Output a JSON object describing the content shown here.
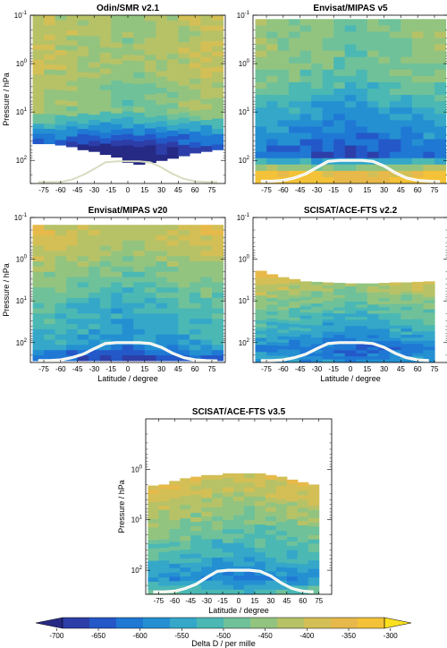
{
  "chart_data": [
    {
      "type": "heatmap",
      "title": "Odin/SMR v2.1",
      "ylabel": "Pressure / hPa",
      "xlabel": "",
      "xlim": [
        -87,
        87
      ],
      "ylim": [
        300,
        0.1
      ],
      "yscale": "log",
      "x_ticks": [
        "-75",
        "-60",
        "-45",
        "-30",
        "-15",
        "0",
        "15",
        "30",
        "45",
        "60",
        "75"
      ],
      "y_ticks": [
        "10^-1",
        "10^0",
        "10^1",
        "10^2"
      ],
      "lat_bins": [
        -80,
        -70,
        -60,
        -50,
        -40,
        -30,
        -20,
        -10,
        0,
        10,
        20,
        30,
        40,
        50,
        60,
        70,
        80
      ],
      "data_bottom_hPa": [
        45,
        45,
        48,
        52,
        60,
        65,
        75,
        85,
        110,
        120,
        110,
        100,
        90,
        80,
        70,
        65,
        60
      ],
      "data_top_hPa": 0.1,
      "profile_levels_hPa": [
        0.15,
        1,
        10,
        60
      ],
      "profile_values": [
        -430,
        -430,
        -470,
        -700
      ],
      "tropopause_hPa": [
        280,
        280,
        280,
        250,
        200,
        150,
        110,
        105,
        105,
        105,
        110,
        140,
        190,
        240,
        270,
        280,
        280
      ]
    },
    {
      "type": "heatmap",
      "title": "Envisat/MIPAS v5",
      "ylabel": "",
      "xlabel": "",
      "xlim": [
        -87,
        87
      ],
      "ylim": [
        300,
        0.1
      ],
      "yscale": "log",
      "x_ticks": [
        "-75",
        "-60",
        "-45",
        "-30",
        "-15",
        "0",
        "15",
        "30",
        "45",
        "60",
        "75"
      ],
      "y_ticks": [
        "10^-1",
        "10^0",
        "10^1",
        "10^2"
      ],
      "lat_bins": [
        -80,
        -70,
        -60,
        -50,
        -40,
        -30,
        -20,
        -10,
        0,
        10,
        20,
        30,
        40,
        50,
        60,
        70,
        80
      ],
      "data_bottom_hPa": 300,
      "data_top_hPa": 0.12,
      "profile_levels_hPa": [
        0.15,
        1,
        10,
        80,
        200
      ],
      "profile_values": [
        -470,
        -470,
        -560,
        -640,
        -340
      ],
      "tropopause_hPa": [
        270,
        270,
        260,
        230,
        190,
        140,
        105,
        100,
        100,
        100,
        105,
        130,
        180,
        230,
        260,
        270,
        275
      ]
    },
    {
      "type": "heatmap",
      "title": "Envisat/MIPAS v20",
      "ylabel": "Pressure / hPa",
      "xlabel": "Latitude / degree",
      "xlim": [
        -87,
        87
      ],
      "ylim": [
        300,
        0.1
      ],
      "yscale": "log",
      "x_ticks": [
        "-75",
        "-60",
        "-45",
        "-30",
        "-15",
        "0",
        "15",
        "30",
        "45",
        "60",
        "75"
      ],
      "y_ticks": [
        "10^-1",
        "10^0",
        "10^1",
        "10^2"
      ],
      "lat_bins": [
        -80,
        -70,
        -60,
        -50,
        -40,
        -30,
        -20,
        -10,
        0,
        10,
        20,
        30,
        40,
        50,
        60,
        70,
        80
      ],
      "data_bottom_hPa": 270,
      "data_top_hPa": 0.15,
      "profile_levels_hPa": [
        0.2,
        1,
        10,
        100,
        230
      ],
      "profile_values": [
        -400,
        -440,
        -520,
        -560,
        -650
      ],
      "tropopause_hPa": [
        270,
        270,
        260,
        230,
        190,
        140,
        105,
        100,
        100,
        100,
        105,
        130,
        180,
        230,
        260,
        270,
        275
      ]
    },
    {
      "type": "heatmap",
      "title": "SCISAT/ACE-FTS v2.2",
      "ylabel": "",
      "xlabel": "Latitude / degree",
      "xlim": [
        -87,
        87
      ],
      "ylim": [
        300,
        0.1
      ],
      "yscale": "log",
      "x_ticks": [
        "-75",
        "-60",
        "-45",
        "-30",
        "-15",
        "0",
        "15",
        "30",
        "45",
        "60",
        "75"
      ],
      "y_ticks": [
        "10^-1",
        "10^0",
        "10^1",
        "10^2"
      ],
      "lat_bins": [
        -80,
        -70,
        -60,
        -50,
        -40,
        -30,
        -20,
        -10,
        0,
        10,
        20,
        30,
        40,
        50,
        60,
        70
      ],
      "data_bottom_hPa": 300,
      "data_top_hPa": [
        1.9,
        2.3,
        2.7,
        3,
        3.4,
        3.5,
        3.6,
        3.7,
        3.8,
        3.8,
        3.8,
        3.7,
        3.6,
        3.6,
        3.5,
        3.4
      ],
      "profile_levels_hPa": [
        1.5,
        10,
        60,
        150,
        250
      ],
      "profile_values": [
        -370,
        -470,
        -560,
        -620,
        -580
      ],
      "tropopause_hPa": [
        270,
        270,
        260,
        230,
        190,
        140,
        105,
        100,
        100,
        100,
        105,
        130,
        180,
        230,
        260,
        270
      ]
    },
    {
      "type": "heatmap",
      "title": "SCISAT/ACE-FTS v3.5",
      "ylabel": "Pressure / hPa",
      "xlabel": "Latitude / degree",
      "xlim": [
        -87,
        87
      ],
      "ylim": [
        300,
        0.1
      ],
      "yscale": "log",
      "x_ticks": [
        "-75",
        "-60",
        "-45",
        "-30",
        "-15",
        "0",
        "15",
        "30",
        "45",
        "60",
        "75"
      ],
      "y_ticks": [
        "10^0",
        "10^1",
        "10^2"
      ],
      "lat_bins": [
        -80,
        -70,
        -60,
        -50,
        -40,
        -30,
        -20,
        -10,
        0,
        10,
        20,
        30,
        40,
        50,
        60,
        70
      ],
      "data_bottom_hPa": 300,
      "data_top_hPa": [
        2.1,
        2,
        1.7,
        1.5,
        1.4,
        1.3,
        1.3,
        1.2,
        1.2,
        1.2,
        1.2,
        1.3,
        1.4,
        1.6,
        1.8,
        2
      ],
      "profile_levels_hPa": [
        1.5,
        10,
        60,
        150,
        250
      ],
      "profile_values": [
        -380,
        -460,
        -540,
        -590,
        -520
      ],
      "tropopause_hPa": [
        270,
        270,
        260,
        230,
        190,
        140,
        105,
        100,
        100,
        100,
        105,
        130,
        180,
        230,
        260,
        270
      ]
    }
  ],
  "colorbar": {
    "label": "Delta D / per mille",
    "ticks": [
      "-700",
      "-650",
      "-600",
      "-550",
      "-500",
      "-450",
      "-400",
      "-350",
      "-300"
    ],
    "range": [
      -725,
      -275
    ],
    "colors": [
      "#262a85",
      "#2d3ea8",
      "#2458c8",
      "#1f78d4",
      "#2490d2",
      "#35a7c9",
      "#4bb8b4",
      "#6fc19a",
      "#93c47f",
      "#b7c267",
      "#d3bf55",
      "#e7b94a",
      "#f3c238",
      "#fbe020"
    ]
  }
}
